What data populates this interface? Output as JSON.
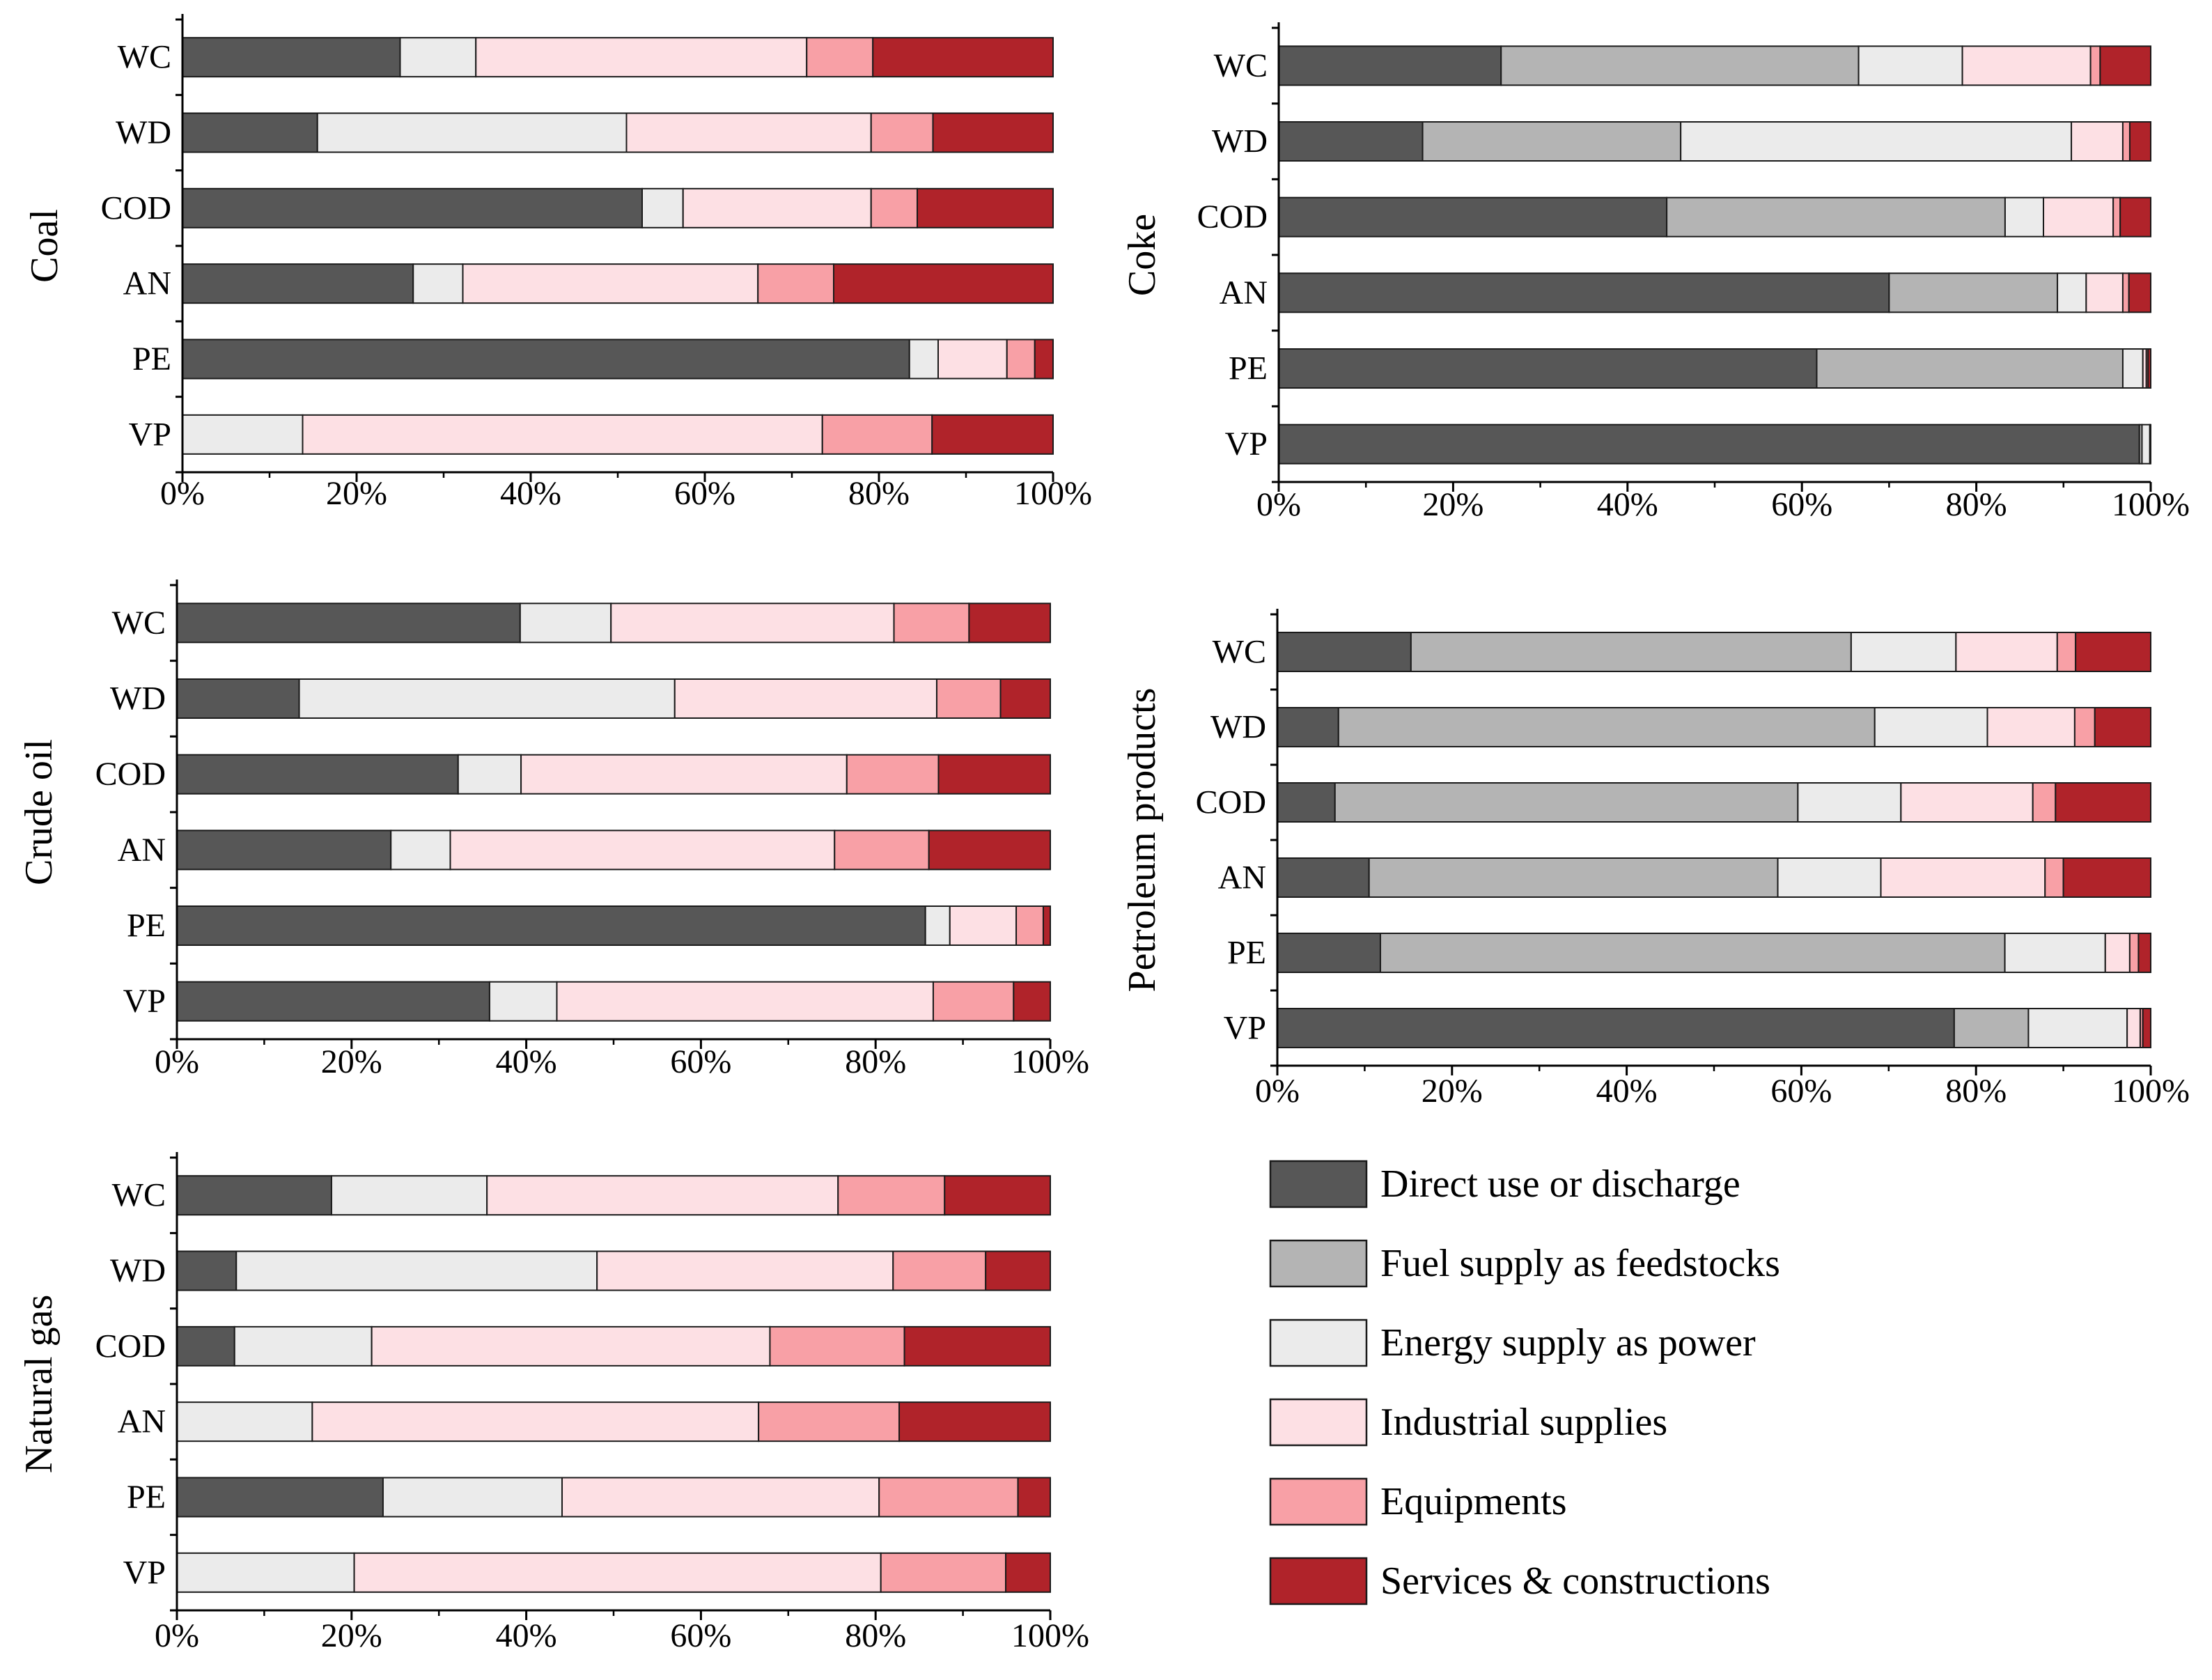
{
  "figure": {
    "type": "stacked horizontal bar panels"
  },
  "legend": {
    "items": [
      {
        "label": "Direct use or discharge",
        "color": "#575757"
      },
      {
        "label": "Fuel supply as feedstocks",
        "color": "#b4b4b4"
      },
      {
        "label": "Energy supply as power",
        "color": "#ebebeb"
      },
      {
        "label": "Industrial supplies",
        "color": "#fde0e4"
      },
      {
        "label": "Equipments",
        "color": "#f8a0a6"
      },
      {
        "label": "Services & constructions",
        "color": "#b0232a"
      }
    ]
  },
  "chart_data": [
    {
      "type": "bar",
      "orientation": "horizontal",
      "stacked": true,
      "title": "Coal",
      "categories": [
        "WC",
        "WD",
        "COD",
        "AN",
        "PE",
        "VP"
      ],
      "xlim": [
        0,
        100
      ],
      "ticks": [
        "0%",
        "20%",
        "40%",
        "60%",
        "80%",
        "100%"
      ],
      "series": [
        {
          "name": "Direct use or discharge",
          "values": [
            25,
            15.5,
            52.8,
            26.5,
            83.5,
            0
          ]
        },
        {
          "name": "Fuel supply as feedstocks",
          "values": [
            0,
            0,
            0,
            0,
            0,
            0
          ]
        },
        {
          "name": "Energy supply as power",
          "values": [
            8.7,
            35.5,
            4.7,
            5.7,
            3.3,
            13.8
          ]
        },
        {
          "name": "Industrial supplies",
          "values": [
            38,
            28.1,
            21.6,
            33.9,
            7.9,
            59.7
          ]
        },
        {
          "name": "Equipments",
          "values": [
            7.6,
            7.1,
            5.3,
            8.7,
            3.2,
            12.6
          ]
        },
        {
          "name": "Services & constructions",
          "values": [
            20.7,
            13.8,
            15.6,
            25.2,
            2.1,
            13.9
          ]
        }
      ]
    },
    {
      "type": "bar",
      "orientation": "horizontal",
      "stacked": true,
      "title": "Coke",
      "categories": [
        "WC",
        "WD",
        "COD",
        "AN",
        "PE",
        "VP"
      ],
      "xlim": [
        0,
        100
      ],
      "ticks": [
        "0%",
        "20%",
        "40%",
        "60%",
        "80%",
        "100%"
      ],
      "series": [
        {
          "name": "Direct use or discharge",
          "values": [
            25.5,
            16.5,
            44.5,
            70,
            61.7,
            98.7
          ]
        },
        {
          "name": "Fuel supply as feedstocks",
          "values": [
            41,
            29.6,
            38.8,
            19.3,
            35.1,
            0.3
          ]
        },
        {
          "name": "Energy supply as power",
          "values": [
            11.9,
            44.8,
            4.4,
            3.3,
            2.3,
            0.9
          ]
        },
        {
          "name": "Industrial supplies",
          "values": [
            14.7,
            5.9,
            8,
            4.2,
            0.4,
            0
          ]
        },
        {
          "name": "Equipments",
          "values": [
            1.1,
            0.8,
            0.8,
            0.7,
            0.2,
            0
          ]
        },
        {
          "name": "Services & constructions",
          "values": [
            5.8,
            2.4,
            3.5,
            2.5,
            0.3,
            0.1
          ]
        }
      ]
    },
    {
      "type": "bar",
      "orientation": "horizontal",
      "stacked": true,
      "title": "Crude oil",
      "categories": [
        "WC",
        "WD",
        "COD",
        "AN",
        "PE",
        "VP"
      ],
      "xlim": [
        0,
        100
      ],
      "ticks": [
        "0%",
        "20%",
        "40%",
        "60%",
        "80%",
        "100%"
      ],
      "series": [
        {
          "name": "Direct use or discharge",
          "values": [
            39.3,
            14,
            32.2,
            24.5,
            85.7,
            35.8
          ]
        },
        {
          "name": "Fuel supply as feedstocks",
          "values": [
            0,
            0,
            0,
            0,
            0,
            0
          ]
        },
        {
          "name": "Energy supply as power",
          "values": [
            10.4,
            43,
            7.2,
            6.8,
            2.8,
            7.7
          ]
        },
        {
          "name": "Industrial supplies",
          "values": [
            32.4,
            30,
            37.3,
            44,
            7.6,
            43.1
          ]
        },
        {
          "name": "Equipments",
          "values": [
            8.6,
            7.3,
            10.5,
            10.8,
            3.1,
            9.2
          ]
        },
        {
          "name": "Services & constructions",
          "values": [
            9.3,
            5.7,
            12.8,
            13.9,
            0.8,
            4.2
          ]
        }
      ]
    },
    {
      "type": "bar",
      "orientation": "horizontal",
      "stacked": true,
      "title": "Petroleum products",
      "categories": [
        "WC",
        "WD",
        "COD",
        "AN",
        "PE",
        "VP"
      ],
      "xlim": [
        0,
        100
      ],
      "ticks": [
        "0%",
        "20%",
        "40%",
        "60%",
        "80%",
        "100%"
      ],
      "series": [
        {
          "name": "Direct use or discharge",
          "values": [
            15.3,
            7,
            6.6,
            10.5,
            11.8,
            77.5
          ]
        },
        {
          "name": "Fuel supply as feedstocks",
          "values": [
            50.4,
            61.4,
            53,
            46.8,
            71.5,
            8.5
          ]
        },
        {
          "name": "Energy supply as power",
          "values": [
            12,
            12.9,
            11.8,
            11.8,
            11.5,
            11.3
          ]
        },
        {
          "name": "Industrial supplies",
          "values": [
            11.6,
            10,
            15.1,
            18.8,
            2.8,
            1.5
          ]
        },
        {
          "name": "Equipments",
          "values": [
            2.1,
            2.3,
            2.6,
            2.1,
            1,
            0.3
          ]
        },
        {
          "name": "Services & constructions",
          "values": [
            8.6,
            6.4,
            10.9,
            10,
            1.4,
            0.9
          ]
        }
      ]
    },
    {
      "type": "bar",
      "orientation": "horizontal",
      "stacked": true,
      "title": "Natural gas",
      "categories": [
        "WC",
        "WD",
        "COD",
        "AN",
        "PE",
        "VP"
      ],
      "xlim": [
        0,
        100
      ],
      "ticks": [
        "0%",
        "20%",
        "40%",
        "60%",
        "80%",
        "100%"
      ],
      "series": [
        {
          "name": "Direct use or discharge",
          "values": [
            17.7,
            6.8,
            6.6,
            0,
            23.6,
            0
          ]
        },
        {
          "name": "Fuel supply as feedstocks",
          "values": [
            0,
            0,
            0,
            0,
            0,
            0
          ]
        },
        {
          "name": "Energy supply as power",
          "values": [
            17.8,
            41.3,
            15.7,
            15.5,
            20.5,
            20.3
          ]
        },
        {
          "name": "Industrial supplies",
          "values": [
            40.2,
            33.9,
            45.6,
            51.1,
            36.3,
            60.3
          ]
        },
        {
          "name": "Equipments",
          "values": [
            12.2,
            10.6,
            15.4,
            16.1,
            15.9,
            14.3
          ]
        },
        {
          "name": "Services & constructions",
          "values": [
            12.1,
            7.4,
            16.7,
            17.3,
            3.7,
            5.1
          ]
        }
      ]
    }
  ]
}
